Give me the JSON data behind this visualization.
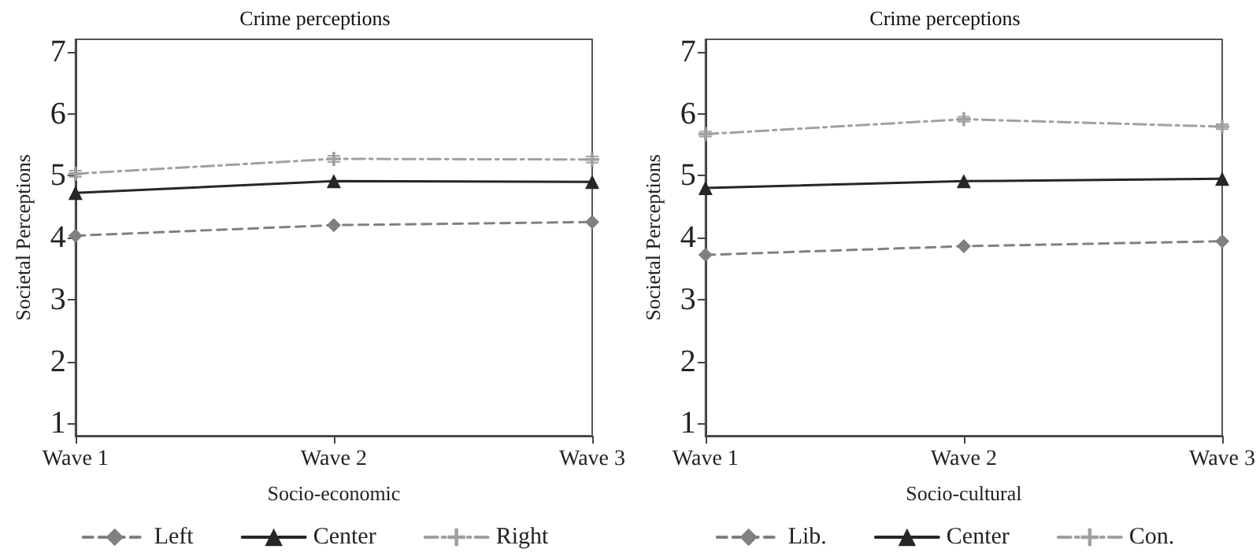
{
  "chart_data": [
    {
      "type": "line",
      "title": "Crime perceptions",
      "xlabel": "Socio-economic",
      "ylabel": "Societal Perceptions",
      "categories": [
        "Wave 1",
        "Wave 2",
        "Wave 3"
      ],
      "ylim": [
        0.8,
        7.2
      ],
      "yticks": [
        1,
        2,
        3,
        4,
        5,
        6,
        7
      ],
      "grid": false,
      "legend": "bottom",
      "series": [
        {
          "name": "Left",
          "color": "#808080",
          "values": [
            4.03,
            4.2,
            4.25
          ],
          "marker": "diamond",
          "line_style": "dashed"
        },
        {
          "name": "Center",
          "color": "#262626",
          "values": [
            4.72,
            4.91,
            4.9
          ],
          "marker": "triangle",
          "line_style": "solid"
        },
        {
          "name": "Right",
          "color": "#a0a0a0",
          "values": [
            5.03,
            5.27,
            5.26
          ],
          "errors": [
            0.05,
            0.05,
            0.05
          ],
          "marker": "cross",
          "line_style": "dotted"
        }
      ]
    },
    {
      "type": "line",
      "title": "Crime perceptions",
      "xlabel": "Socio-cultural",
      "ylabel": "Societal Perceptions",
      "categories": [
        "Wave 1",
        "Wave 2",
        "Wave 3"
      ],
      "ylim": [
        0.8,
        7.2
      ],
      "yticks": [
        1,
        2,
        3,
        4,
        5,
        6,
        7
      ],
      "grid": false,
      "legend": "bottom",
      "series": [
        {
          "name": "Lib.",
          "color": "#808080",
          "values": [
            3.72,
            3.86,
            3.94
          ],
          "marker": "diamond",
          "line_style": "dashed"
        },
        {
          "name": "Center",
          "color": "#262626",
          "values": [
            4.8,
            4.91,
            4.95
          ],
          "marker": "triangle",
          "line_style": "solid"
        },
        {
          "name": "Con.",
          "color": "#a0a0a0",
          "values": [
            5.67,
            5.91,
            5.79
          ],
          "errors": [
            0.04,
            0.04,
            0.04
          ],
          "marker": "cross",
          "line_style": "dotted"
        }
      ]
    }
  ]
}
